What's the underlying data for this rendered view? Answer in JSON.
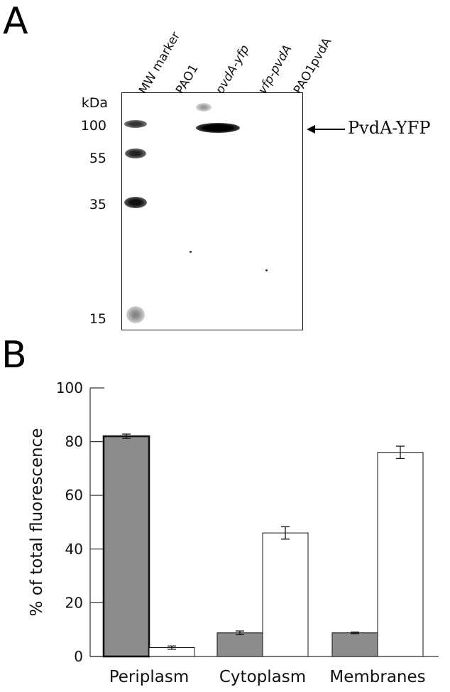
{
  "panel_a": {
    "letter": "A",
    "lanes": [
      "MW marker",
      "PAO1",
      "pvdA-yfp",
      "yfp-pvdA",
      "PAO1pvdA"
    ],
    "kda_title": "kDa",
    "markers": [
      "100",
      "55",
      "35",
      "15"
    ],
    "band_label": "PvdA-YFP"
  },
  "panel_b": {
    "letter": "B"
  },
  "chart_data": {
    "type": "bar",
    "categories": [
      "Periplasm",
      "Cytoplasm",
      "Membranes"
    ],
    "series": [
      {
        "color": "#8c8c8c",
        "values": [
          82,
          8.8,
          8.8
        ],
        "errors": [
          0.8,
          0.7,
          0.3
        ]
      },
      {
        "color": "#ffffff",
        "values": [
          3.3,
          46,
          76
        ],
        "errors": [
          0.6,
          2.3,
          2.3
        ]
      }
    ],
    "ylabel": "% of total fluorescence",
    "xlabel": "",
    "ylim": [
      0,
      100
    ],
    "yticks": [
      "0",
      "20",
      "40",
      "60",
      "80",
      "100"
    ],
    "grid": false
  }
}
